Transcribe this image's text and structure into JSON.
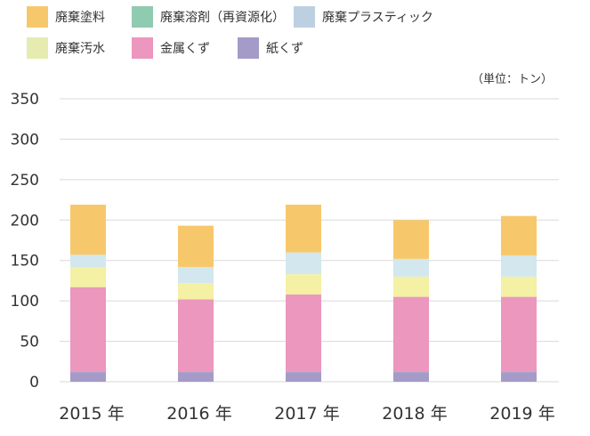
{
  "chart_data": {
    "type": "bar",
    "stacked": true,
    "unit": "（単位：トン）",
    "categories": [
      "2015 年",
      "2016 年",
      "2017 年",
      "2018 年",
      "2019 年"
    ],
    "ylim": [
      0,
      350
    ],
    "yticks": [
      0,
      50,
      100,
      150,
      200,
      250,
      300,
      350
    ],
    "grid": true,
    "legend_position": "top",
    "series": [
      {
        "name": "紙くず",
        "color": "#a49bc9",
        "values": [
          12,
          12,
          12,
          12,
          12
        ]
      },
      {
        "name": "金属くず",
        "color": "#ec97bd",
        "values": [
          105,
          90,
          96,
          93,
          93
        ]
      },
      {
        "name": "廃棄汚水",
        "color": "#f4f0a4",
        "values": [
          25,
          20,
          25,
          25,
          25
        ]
      },
      {
        "name": "廃棄プラスティック",
        "color": "#d2e7ee",
        "values": [
          15,
          20,
          27,
          22,
          26
        ]
      },
      {
        "name": "廃棄溶剤（再資源化）",
        "color": "#8fcbb0",
        "values": [
          0,
          0,
          0,
          0,
          0
        ]
      },
      {
        "name": "廃棄塗料",
        "color": "#f7c86b",
        "values": [
          62,
          51,
          59,
          48,
          49
        ]
      }
    ],
    "legend_order": [
      "廃棄塗料",
      "廃棄溶剤（再資源化）",
      "廃棄プラスティック",
      "廃棄汚水",
      "金属くず",
      "紙くず"
    ],
    "legend_colors": {
      "廃棄塗料": "#f7c86b",
      "廃棄溶剤（再資源化）": "#8fcbb0",
      "廃棄プラスティック": "#bcd0e2",
      "廃棄汚水": "#e6ecb0",
      "金属くず": "#ec97bd",
      "紙くず": "#a49bc9"
    }
  }
}
